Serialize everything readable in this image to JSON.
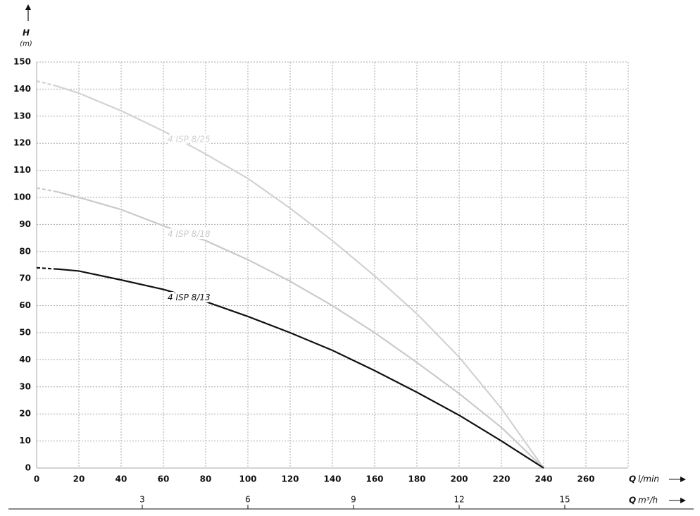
{
  "chart_data": {
    "type": "line",
    "y_label": "H",
    "y_unit": "(m)",
    "x_label": "Q",
    "x_unit": "l/min",
    "x2_label": "Q",
    "x2_unit": "m³/h",
    "x": [
      0,
      10,
      20,
      40,
      60,
      80,
      100,
      120,
      140,
      160,
      180,
      200,
      220,
      240
    ],
    "series": [
      {
        "name": "4 ISP 8/25",
        "color": "#d2d2d2",
        "values": [
          143,
          141,
          138.5,
          132,
          124.5,
          116,
          107,
          96,
          84,
          71,
          57,
          41,
          22,
          0
        ]
      },
      {
        "name": "4 ISP 8/18",
        "color": "#cacaca",
        "values": [
          103.5,
          102,
          100,
          95.5,
          89.5,
          84,
          77,
          69,
          60,
          50,
          39,
          27.5,
          15,
          0
        ]
      },
      {
        "name": "4 ISP 8/13",
        "color": "#111111",
        "values": [
          74,
          73.5,
          72.8,
          69.5,
          66,
          61.5,
          56,
          50,
          43.5,
          36,
          28,
          19.5,
          10,
          0
        ]
      }
    ],
    "xlim": [
      0,
      280
    ],
    "xticks": [
      0,
      20,
      40,
      60,
      80,
      100,
      120,
      140,
      160,
      180,
      200,
      220,
      240,
      260
    ],
    "ylim": [
      0,
      150
    ],
    "yticks": [
      0,
      10,
      20,
      30,
      40,
      50,
      60,
      70,
      80,
      90,
      100,
      110,
      120,
      130,
      140,
      150
    ],
    "x2lim": [
      0,
      16.8
    ],
    "x2ticks": [
      3,
      6,
      9,
      12,
      15
    ],
    "grid": true
  }
}
